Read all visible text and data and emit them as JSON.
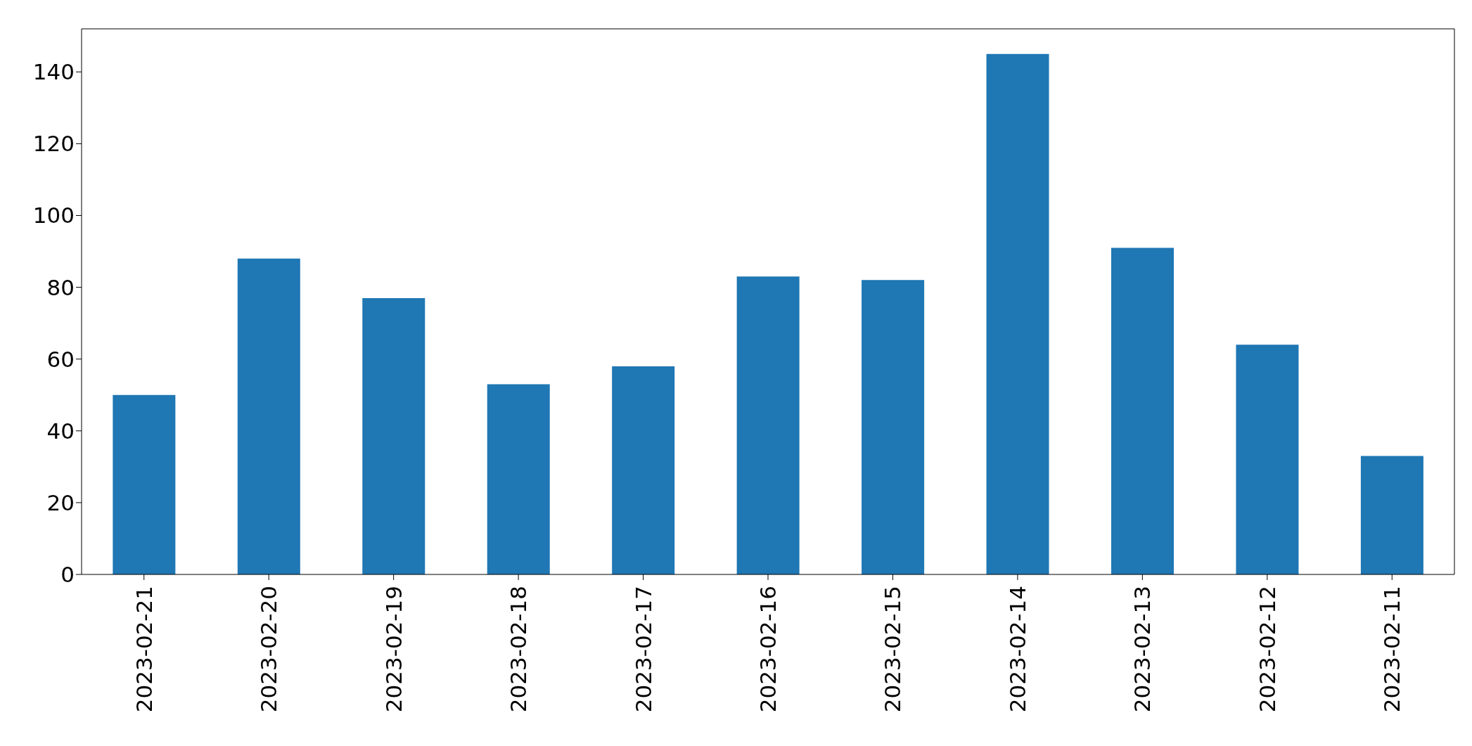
{
  "chart_data": {
    "type": "bar",
    "categories": [
      "2023-02-21",
      "2023-02-20",
      "2023-02-19",
      "2023-02-18",
      "2023-02-17",
      "2023-02-16",
      "2023-02-15",
      "2023-02-14",
      "2023-02-13",
      "2023-02-12",
      "2023-02-11"
    ],
    "values": [
      50,
      88,
      77,
      53,
      58,
      83,
      82,
      145,
      91,
      64,
      33
    ],
    "color": "#1f77b4",
    "ylim": [
      0,
      152
    ],
    "yticks": [
      0,
      20,
      40,
      60,
      80,
      100,
      120,
      140
    ],
    "grid": false
  }
}
